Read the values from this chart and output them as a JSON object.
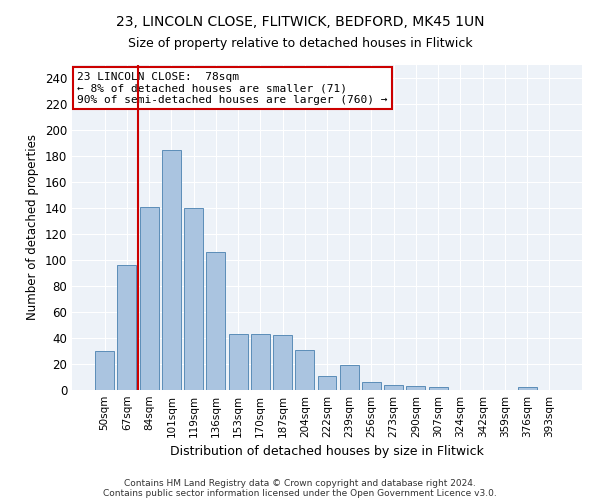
{
  "title1": "23, LINCOLN CLOSE, FLITWICK, BEDFORD, MK45 1UN",
  "title2": "Size of property relative to detached houses in Flitwick",
  "xlabel": "Distribution of detached houses by size in Flitwick",
  "ylabel": "Number of detached properties",
  "categories": [
    "50sqm",
    "67sqm",
    "84sqm",
    "101sqm",
    "119sqm",
    "136sqm",
    "153sqm",
    "170sqm",
    "187sqm",
    "204sqm",
    "222sqm",
    "239sqm",
    "256sqm",
    "273sqm",
    "290sqm",
    "307sqm",
    "324sqm",
    "342sqm",
    "359sqm",
    "376sqm",
    "393sqm"
  ],
  "values": [
    30,
    96,
    141,
    185,
    140,
    106,
    43,
    43,
    42,
    31,
    11,
    19,
    6,
    4,
    3,
    2,
    0,
    0,
    0,
    2,
    0
  ],
  "bar_color": "#aac4e0",
  "bar_edge_color": "#5b8db8",
  "annotation_line1": "23 LINCOLN CLOSE:  78sqm",
  "annotation_line2": "← 8% of detached houses are smaller (71)",
  "annotation_line3": "90% of semi-detached houses are larger (760) →",
  "vline_color": "#cc0000",
  "vline_x_index": 1.5,
  "annotation_box_color": "#ffffff",
  "annotation_box_edge_color": "#cc0000",
  "ylim": [
    0,
    250
  ],
  "yticks": [
    0,
    20,
    40,
    60,
    80,
    100,
    120,
    140,
    160,
    180,
    200,
    220,
    240
  ],
  "background_color": "#edf2f8",
  "footer1": "Contains HM Land Registry data © Crown copyright and database right 2024.",
  "footer2": "Contains public sector information licensed under the Open Government Licence v3.0."
}
